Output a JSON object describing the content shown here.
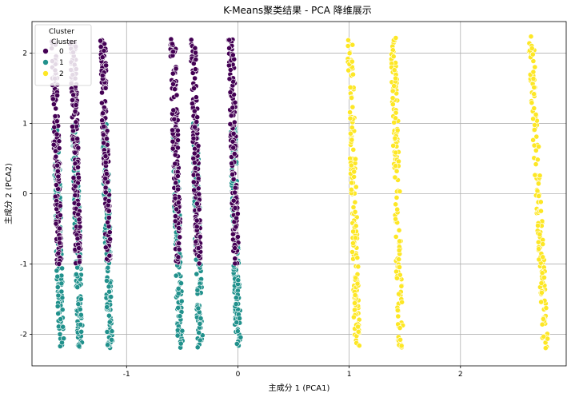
{
  "chart_data": {
    "type": "scatter",
    "title": "K-Means聚类结果 - PCA 降维展示",
    "xlabel": "主成分 1 (PCA1)",
    "ylabel": "主成分 2 (PCA2)",
    "xlim": [
      -1.85,
      2.95
    ],
    "ylim": [
      -2.45,
      2.45
    ],
    "x_ticks": [
      -1,
      0,
      1,
      2
    ],
    "y_ticks": [
      -2,
      -1,
      0,
      1,
      2
    ],
    "grid": true,
    "legend": {
      "title": "Cluster",
      "header": "Cluster",
      "placement": "top-left",
      "entries": [
        {
          "label": "0",
          "color": "#440154"
        },
        {
          "label": "1",
          "color": "#21918c"
        },
        {
          "label": "2",
          "color": "#fde725"
        }
      ]
    },
    "series": [
      {
        "cluster": "0",
        "color": "#440154",
        "columns": [
          {
            "x": -1.62,
            "y_min": -1.0,
            "y_max": 2.2
          },
          {
            "x": -1.45,
            "y_min": -1.0,
            "y_max": 2.2
          },
          {
            "x": -1.18,
            "y_min": -1.0,
            "y_max": 2.2
          },
          {
            "x": -0.55,
            "y_min": -1.0,
            "y_max": 2.2
          },
          {
            "x": -0.37,
            "y_min": -1.0,
            "y_max": 2.2
          },
          {
            "x": -0.03,
            "y_min": -1.0,
            "y_max": 2.2
          }
        ]
      },
      {
        "cluster": "1",
        "color": "#21918c",
        "columns": [
          {
            "x": -1.62,
            "y_min": -2.2,
            "y_max": 1.0
          },
          {
            "x": -1.45,
            "y_min": -2.2,
            "y_max": 1.0
          },
          {
            "x": -1.18,
            "y_min": -2.2,
            "y_max": 1.0
          },
          {
            "x": -0.55,
            "y_min": -2.2,
            "y_max": 1.0
          },
          {
            "x": -0.37,
            "y_min": -2.2,
            "y_max": 1.0
          },
          {
            "x": -0.03,
            "y_min": -2.2,
            "y_max": 1.0
          }
        ]
      },
      {
        "cluster": "2",
        "color": "#fde725",
        "columns": [
          {
            "x": 1.04,
            "y_min": -2.2,
            "y_max": 2.22
          },
          {
            "x": 1.43,
            "y_min": -2.2,
            "y_max": 2.22
          },
          {
            "x": 2.7,
            "y_min": -2.2,
            "y_max": 2.25
          }
        ]
      }
    ]
  }
}
